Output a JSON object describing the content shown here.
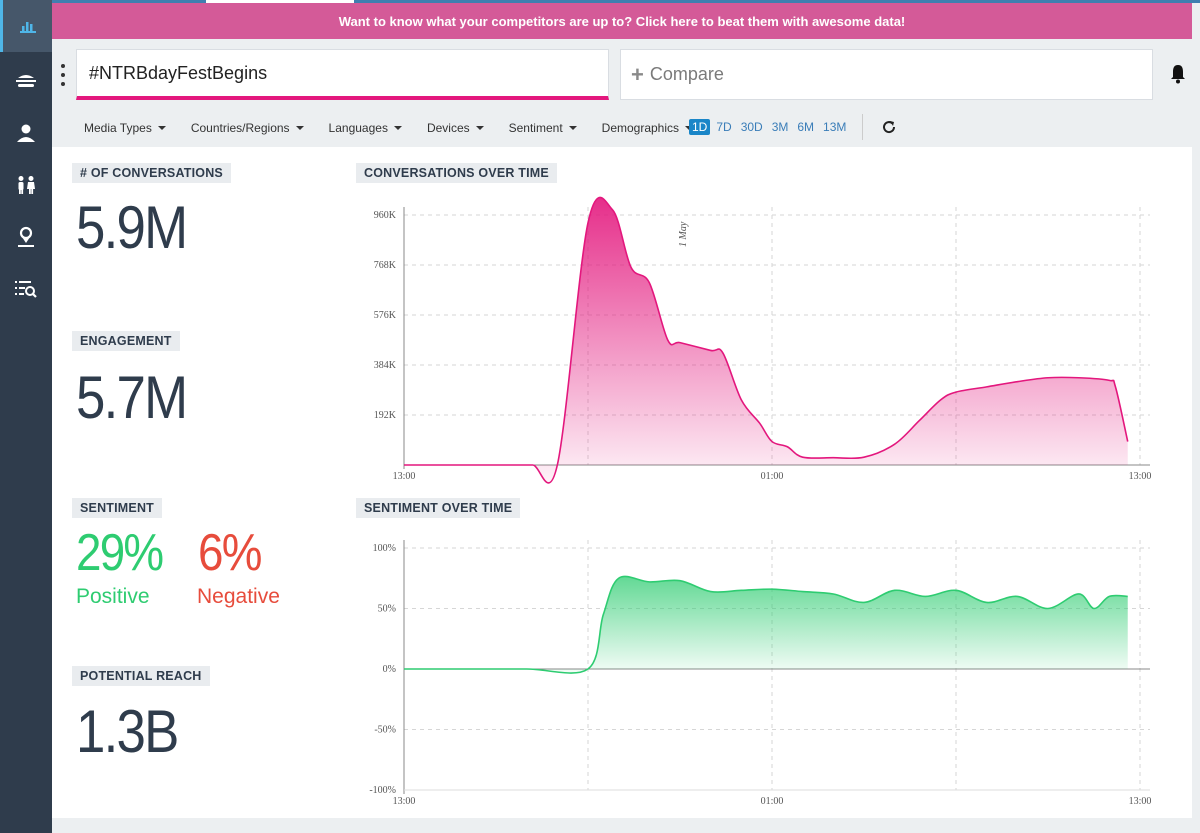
{
  "banner": {
    "text": "Want to know what your competitors are up to? Click here to beat them with awesome data!"
  },
  "sidebar": {
    "items": [
      {
        "icon": "bar-chart-icon",
        "active": true
      },
      {
        "icon": "burger-menu-icon"
      },
      {
        "icon": "user-icon"
      },
      {
        "icon": "people-icon"
      },
      {
        "icon": "location-icon"
      },
      {
        "icon": "list-search-icon"
      }
    ]
  },
  "search": {
    "query": "#NTRBdayFestBegins",
    "compare_placeholder": "Compare",
    "compare_plus": "+"
  },
  "filters": [
    "Media Types",
    "Countries/Regions",
    "Languages",
    "Devices",
    "Sentiment",
    "Demographics"
  ],
  "ranges": [
    {
      "label": "1D",
      "active": true
    },
    {
      "label": "7D"
    },
    {
      "label": "30D"
    },
    {
      "label": "3M"
    },
    {
      "label": "6M"
    },
    {
      "label": "13M"
    }
  ],
  "metrics": {
    "conversations": {
      "label": "# OF CONVERSATIONS",
      "value": "5.9M"
    },
    "engagement": {
      "label": "ENGAGEMENT",
      "value": "5.7M"
    },
    "sentiment": {
      "label": "SENTIMENT",
      "positive": "29%",
      "positive_label": "Positive",
      "negative": "6%",
      "negative_label": "Negative"
    },
    "reach": {
      "label": "POTENTIAL REACH",
      "value": "1.3B"
    }
  },
  "colors": {
    "accent": "#e3177d",
    "positive": "#2ecc71",
    "negative": "#e74c3c",
    "sidebar": "#2f3c4c",
    "banner": "#d45a98"
  },
  "chart_data": [
    {
      "type": "area",
      "title": "CONVERSATIONS OVER TIME",
      "ytick_labels": [
        "192K",
        "384K",
        "576K",
        "768K",
        "960K"
      ],
      "yticks": [
        192000,
        384000,
        576000,
        768000,
        960000
      ],
      "ylim": [
        0,
        960000
      ],
      "xtick_labels": [
        "13:00",
        "01:00",
        "13:00"
      ],
      "x_hours_range": [
        0,
        24
      ],
      "annotation": "1 May",
      "x": [
        0,
        1,
        2,
        3,
        3.5,
        4.2,
        5,
        6,
        6.8,
        7.4,
        8,
        8.6,
        9,
        10,
        10.4,
        11,
        11.6,
        12,
        12.5,
        13,
        14,
        15,
        16,
        16.8,
        17.5,
        18,
        19,
        20,
        21,
        22,
        23,
        23.2,
        23.6
      ],
      "y": [
        0,
        0,
        0,
        0,
        0,
        0,
        0,
        930000,
        980000,
        760000,
        700000,
        480000,
        470000,
        440000,
        430000,
        250000,
        160000,
        90000,
        70000,
        30000,
        28000,
        30000,
        80000,
        170000,
        250000,
        280000,
        300000,
        320000,
        335000,
        335000,
        325000,
        300000,
        90000
      ]
    },
    {
      "type": "area",
      "title": "SENTIMENT OVER TIME",
      "ytick_labels": [
        "100%",
        "50%",
        "0%",
        "-50%",
        "-100%"
      ],
      "yticks": [
        100,
        50,
        0,
        -50,
        -100
      ],
      "ylim": [
        -100,
        100
      ],
      "xtick_labels": [
        "13:00",
        "01:00",
        "13:00"
      ],
      "x_hours_range": [
        0,
        24
      ],
      "x": [
        0,
        2,
        4,
        6,
        6.5,
        7,
        8,
        9,
        10,
        11,
        12,
        13,
        14,
        15,
        16,
        17,
        18,
        19,
        20,
        21,
        22,
        22.5,
        23,
        23.6
      ],
      "y": [
        0,
        0,
        0,
        0,
        45,
        75,
        72,
        73,
        64,
        65,
        66,
        64,
        62,
        55,
        65,
        60,
        65,
        55,
        60,
        50,
        62,
        50,
        60,
        60
      ]
    }
  ]
}
